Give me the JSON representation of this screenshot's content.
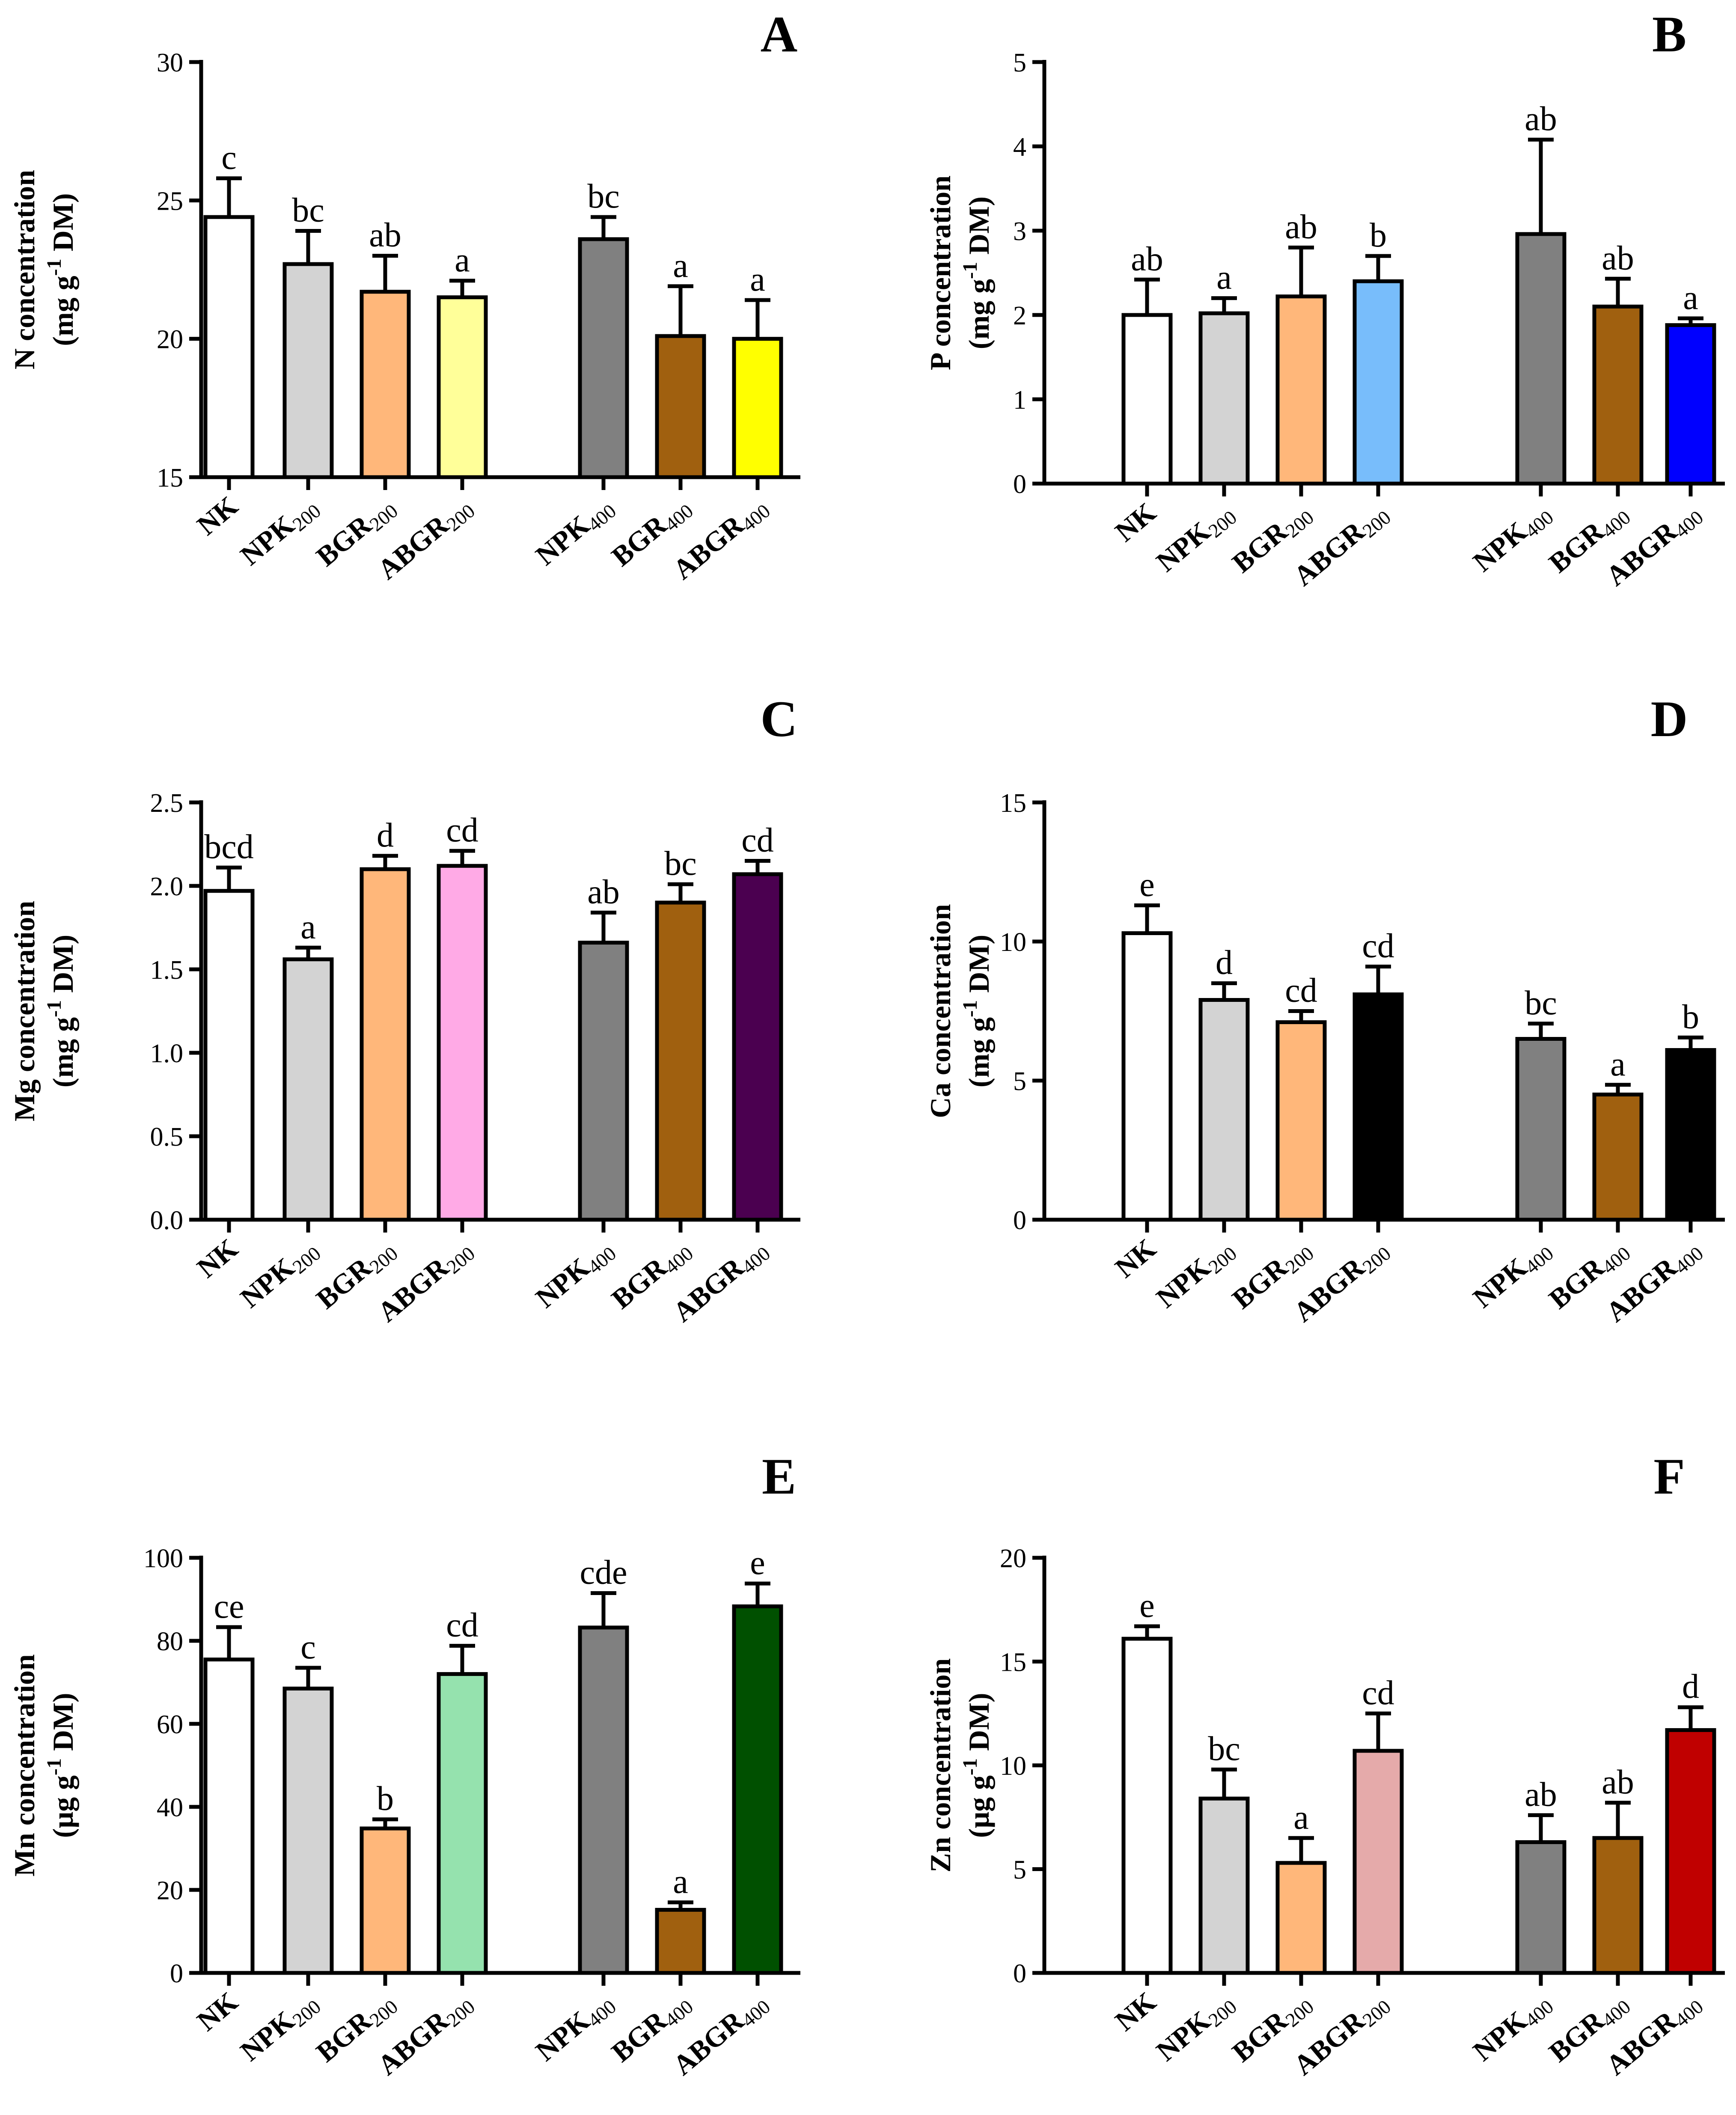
{
  "figure": {
    "categories": [
      {
        "main": "NK",
        "sub": ""
      },
      {
        "main": "NPK",
        "sub": "200"
      },
      {
        "main": "BGR",
        "sub": "200"
      },
      {
        "main": "ABGR",
        "sub": "200"
      },
      {
        "main": "NPK",
        "sub": "400"
      },
      {
        "main": "BGR",
        "sub": "400"
      },
      {
        "main": "ABGR",
        "sub": "400"
      }
    ]
  },
  "chart_data": [
    {
      "panel": "A",
      "type": "bar",
      "ylabel_line1": "N concentration",
      "ylabel_unit_prefix": "(mg g",
      "ylabel_unit_sup": "-1",
      "ylabel_unit_suffix": " DM)",
      "ylim": [
        15,
        30
      ],
      "yticks": [
        "15",
        "20",
        "25",
        "30"
      ],
      "values": [
        24.4,
        22.7,
        21.7,
        21.5,
        23.6,
        20.1,
        20.0
      ],
      "errors": [
        1.4,
        1.2,
        1.3,
        0.6,
        0.8,
        1.8,
        1.4
      ],
      "letters": [
        "c",
        "bc",
        "ab",
        "a",
        "bc",
        "a",
        "a"
      ],
      "colors": [
        "#ffffff",
        "#d3d3d3",
        "#ffb77a",
        "#ffff99",
        "#808080",
        "#a0600f",
        "#ffff00"
      ]
    },
    {
      "panel": "B",
      "type": "bar",
      "ylabel_line1": "P concentration",
      "ylabel_unit_prefix": "(mg g",
      "ylabel_unit_sup": "-1",
      "ylabel_unit_suffix": " DM)",
      "ylim": [
        0,
        5
      ],
      "yticks": [
        "0",
        "1",
        "2",
        "3",
        "4",
        "5"
      ],
      "values": [
        2.0,
        2.02,
        2.22,
        2.4,
        2.96,
        2.1,
        1.88
      ],
      "errors": [
        0.42,
        0.18,
        0.58,
        0.3,
        1.12,
        0.33,
        0.08
      ],
      "letters": [
        "ab",
        "a",
        "ab",
        "b",
        "ab",
        "ab",
        "a"
      ],
      "colors": [
        "#ffffff",
        "#d3d3d3",
        "#ffb77a",
        "#78bdfb",
        "#808080",
        "#a0600f",
        "#0000ff"
      ]
    },
    {
      "panel": "C",
      "type": "bar",
      "ylabel_line1": "Mg concentration",
      "ylabel_unit_prefix": "(mg g",
      "ylabel_unit_sup": "-1",
      "ylabel_unit_suffix": " DM)",
      "ylim": [
        0,
        2.5
      ],
      "yticks": [
        "0.0",
        "0.5",
        "1.0",
        "1.5",
        "2.0",
        "2.5"
      ],
      "values": [
        1.97,
        1.56,
        2.1,
        2.12,
        1.66,
        1.9,
        2.07
      ],
      "errors": [
        0.14,
        0.07,
        0.08,
        0.09,
        0.18,
        0.11,
        0.08
      ],
      "letters": [
        "bcd",
        "a",
        "d",
        "cd",
        "ab",
        "bc",
        "cd"
      ],
      "colors": [
        "#ffffff",
        "#d3d3d3",
        "#ffb77a",
        "#ffaae6",
        "#808080",
        "#a0600f",
        "#4b0050"
      ]
    },
    {
      "panel": "D",
      "type": "bar",
      "ylabel_line1": "Ca concentration",
      "ylabel_unit_prefix": "(mg g",
      "ylabel_unit_sup": "-1",
      "ylabel_unit_suffix": " DM)",
      "ylim": [
        0,
        15
      ],
      "yticks": [
        "0",
        "5",
        "10",
        "15"
      ],
      "values": [
        10.3,
        7.9,
        7.1,
        8.1,
        6.5,
        4.5,
        6.1
      ],
      "errors": [
        1.0,
        0.6,
        0.4,
        1.0,
        0.55,
        0.35,
        0.45
      ],
      "letters": [
        "e",
        "d",
        "cd",
        "cd",
        "bc",
        "a",
        "b"
      ],
      "colors": [
        "#ffffff",
        "#d3d3d3",
        "#ffb77a",
        "#000000",
        "#808080",
        "#a0600f",
        "#000000"
      ]
    },
    {
      "panel": "E",
      "type": "bar",
      "ylabel_line1": "Mn concentration",
      "ylabel_unit_prefix": "(μg g",
      "ylabel_unit_sup": "-1",
      "ylabel_unit_suffix": " DM)",
      "ylim": [
        0,
        100
      ],
      "yticks": [
        "0",
        "20",
        "40",
        "60",
        "80",
        "100"
      ],
      "values": [
        75.5,
        68.5,
        34.8,
        72.0,
        83.2,
        15.2,
        88.3
      ],
      "errors": [
        7.8,
        5.0,
        2.2,
        6.8,
        8.3,
        1.8,
        5.5
      ],
      "letters": [
        "ce",
        "c",
        "b",
        "cd",
        "cde",
        "a",
        "e"
      ],
      "colors": [
        "#ffffff",
        "#d3d3d3",
        "#ffb77a",
        "#95e2ae",
        "#808080",
        "#a0600f",
        "#005000"
      ]
    },
    {
      "panel": "F",
      "type": "bar",
      "ylabel_line1": "Zn concentration",
      "ylabel_unit_prefix": "(μg g",
      "ylabel_unit_sup": "-1",
      "ylabel_unit_suffix": " DM)",
      "ylim": [
        0,
        20
      ],
      "yticks": [
        "0",
        "5",
        "10",
        "15",
        "20"
      ],
      "values": [
        16.1,
        8.4,
        5.3,
        10.7,
        6.3,
        6.5,
        11.7
      ],
      "errors": [
        0.6,
        1.4,
        1.2,
        1.8,
        1.3,
        1.7,
        1.1
      ],
      "letters": [
        "e",
        "bc",
        "a",
        "cd",
        "ab",
        "ab",
        "d"
      ],
      "colors": [
        "#ffffff",
        "#d3d3d3",
        "#ffb77a",
        "#e5aaaa",
        "#808080",
        "#a0600f",
        "#c00000"
      ]
    }
  ]
}
